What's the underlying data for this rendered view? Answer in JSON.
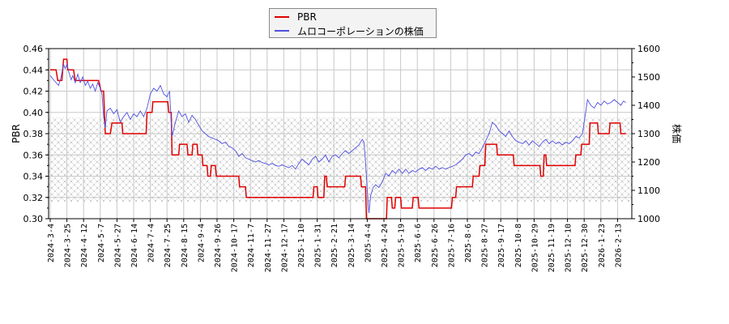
{
  "legend": {
    "items": [
      {
        "label": "PBR",
        "color": "#e00000"
      },
      {
        "label": "ムロコーポレーションの株価",
        "color": "#5050e0"
      }
    ]
  },
  "axes": {
    "left_title": "PBR",
    "right_title": "株価"
  },
  "chart_data": {
    "type": "line",
    "title": "",
    "xlabel": "",
    "ylabel": "PBR",
    "y2label": "株価",
    "ylim": [
      0.3,
      0.46
    ],
    "y2lim": [
      1000,
      1600
    ],
    "yticks": [
      "0.30",
      "0.32",
      "0.34",
      "0.36",
      "0.38",
      "0.40",
      "0.42",
      "0.44",
      "0.46"
    ],
    "y2ticks": [
      "1000",
      "1100",
      "1200",
      "1300",
      "1400",
      "1500",
      "1600"
    ],
    "grid": true,
    "legend_position": "top-center",
    "shaded_band_pbr": [
      0.316,
      0.395
    ],
    "categories": [
      "2024-3-4",
      "2024-3-25",
      "2024-4-12",
      "2024-5-7",
      "2024-5-27",
      "2024-6-14",
      "2024-7-4",
      "2024-7-25",
      "2024-8-15",
      "2024-9-4",
      "2024-9-26",
      "2024-10-17",
      "2024-11-7",
      "2024-11-27",
      "2024-12-17",
      "2025-1-10",
      "2025-1-31",
      "2025-2-21",
      "2025-3-14",
      "2025-4-4",
      "2025-4-24",
      "2025-5-19",
      "2025-6-6",
      "2025-6-26",
      "2025-7-16",
      "2025-8-6",
      "2025-8-27",
      "2025-9-17",
      "2025-10-8",
      "2025-10-29",
      "2025-11-19",
      "2025-12-10",
      "2025-12-30",
      "2026-1-23",
      "2026-2-13"
    ],
    "series": [
      {
        "name": "PBR",
        "axis": "left",
        "color": "#e00000",
        "step": true,
        "points": [
          [
            0,
            0.44
          ],
          [
            0.35,
            0.44
          ],
          [
            0.45,
            0.43
          ],
          [
            0.7,
            0.43
          ],
          [
            0.8,
            0.45
          ],
          [
            1.0,
            0.45
          ],
          [
            1.05,
            0.44
          ],
          [
            1.4,
            0.44
          ],
          [
            1.5,
            0.43
          ],
          [
            2.9,
            0.43
          ],
          [
            3.05,
            0.42
          ],
          [
            3.2,
            0.42
          ],
          [
            3.3,
            0.38
          ],
          [
            3.6,
            0.38
          ],
          [
            3.7,
            0.39
          ],
          [
            4.3,
            0.39
          ],
          [
            4.35,
            0.38
          ],
          [
            5.75,
            0.38
          ],
          [
            5.8,
            0.4
          ],
          [
            6.1,
            0.4
          ],
          [
            6.15,
            0.41
          ],
          [
            7.05,
            0.41
          ],
          [
            7.1,
            0.4
          ],
          [
            7.25,
            0.4
          ],
          [
            7.3,
            0.36
          ],
          [
            7.7,
            0.36
          ],
          [
            7.75,
            0.37
          ],
          [
            8.2,
            0.37
          ],
          [
            8.25,
            0.36
          ],
          [
            8.5,
            0.36
          ],
          [
            8.55,
            0.37
          ],
          [
            8.8,
            0.37
          ],
          [
            8.85,
            0.36
          ],
          [
            9.1,
            0.36
          ],
          [
            9.15,
            0.35
          ],
          [
            9.4,
            0.35
          ],
          [
            9.45,
            0.34
          ],
          [
            9.6,
            0.34
          ],
          [
            9.65,
            0.35
          ],
          [
            9.9,
            0.35
          ],
          [
            9.95,
            0.34
          ],
          [
            11.3,
            0.34
          ],
          [
            11.35,
            0.33
          ],
          [
            11.7,
            0.33
          ],
          [
            11.75,
            0.32
          ],
          [
            15.75,
            0.32
          ],
          [
            15.8,
            0.33
          ],
          [
            16.0,
            0.33
          ],
          [
            16.05,
            0.32
          ],
          [
            16.4,
            0.32
          ],
          [
            16.45,
            0.34
          ],
          [
            16.55,
            0.34
          ],
          [
            16.6,
            0.33
          ],
          [
            17.65,
            0.33
          ],
          [
            17.7,
            0.34
          ],
          [
            18.6,
            0.34
          ],
          [
            18.65,
            0.33
          ],
          [
            18.9,
            0.33
          ],
          [
            18.95,
            0.3
          ],
          [
            20.15,
            0.3
          ],
          [
            20.2,
            0.32
          ],
          [
            20.45,
            0.32
          ],
          [
            20.5,
            0.31
          ],
          [
            20.65,
            0.31
          ],
          [
            20.7,
            0.32
          ],
          [
            21.0,
            0.32
          ],
          [
            21.05,
            0.31
          ],
          [
            21.7,
            0.31
          ],
          [
            21.75,
            0.32
          ],
          [
            22.05,
            0.32
          ],
          [
            22.1,
            0.31
          ],
          [
            24.05,
            0.31
          ],
          [
            24.1,
            0.32
          ],
          [
            24.3,
            0.32
          ],
          [
            24.35,
            0.33
          ],
          [
            25.3,
            0.33
          ],
          [
            25.35,
            0.34
          ],
          [
            25.7,
            0.34
          ],
          [
            25.75,
            0.35
          ],
          [
            26.05,
            0.35
          ],
          [
            26.1,
            0.37
          ],
          [
            26.75,
            0.37
          ],
          [
            26.8,
            0.36
          ],
          [
            27.75,
            0.36
          ],
          [
            27.8,
            0.35
          ],
          [
            29.35,
            0.35
          ],
          [
            29.4,
            0.34
          ],
          [
            29.55,
            0.34
          ],
          [
            29.6,
            0.36
          ],
          [
            29.7,
            0.36
          ],
          [
            29.75,
            0.35
          ],
          [
            31.45,
            0.35
          ],
          [
            31.5,
            0.36
          ],
          [
            31.8,
            0.36
          ],
          [
            31.85,
            0.37
          ],
          [
            32.3,
            0.37
          ],
          [
            32.35,
            0.39
          ],
          [
            32.8,
            0.39
          ],
          [
            32.85,
            0.38
          ],
          [
            33.5,
            0.38
          ],
          [
            33.55,
            0.39
          ],
          [
            34.15,
            0.39
          ],
          [
            34.2,
            0.38
          ],
          [
            34.5,
            0.38
          ]
        ]
      },
      {
        "name": "ムロコーポレーションの株価",
        "axis": "right",
        "color": "#5050e0",
        "step": false,
        "points": [
          [
            0,
            1505
          ],
          [
            0.2,
            1490
          ],
          [
            0.35,
            1480
          ],
          [
            0.5,
            1470
          ],
          [
            0.65,
            1500
          ],
          [
            0.8,
            1545
          ],
          [
            0.9,
            1530
          ],
          [
            1.0,
            1545
          ],
          [
            1.1,
            1520
          ],
          [
            1.25,
            1490
          ],
          [
            1.35,
            1505
          ],
          [
            1.5,
            1480
          ],
          [
            1.65,
            1510
          ],
          [
            1.8,
            1480
          ],
          [
            1.95,
            1500
          ],
          [
            2.1,
            1470
          ],
          [
            2.25,
            1485
          ],
          [
            2.4,
            1460
          ],
          [
            2.55,
            1475
          ],
          [
            2.7,
            1450
          ],
          [
            2.85,
            1480
          ],
          [
            3.0,
            1460
          ],
          [
            3.1,
            1440
          ],
          [
            3.2,
            1360
          ],
          [
            3.3,
            1320
          ],
          [
            3.4,
            1380
          ],
          [
            3.6,
            1390
          ],
          [
            3.8,
            1370
          ],
          [
            4.0,
            1385
          ],
          [
            4.2,
            1340
          ],
          [
            4.4,
            1360
          ],
          [
            4.6,
            1375
          ],
          [
            4.8,
            1350
          ],
          [
            5.0,
            1370
          ],
          [
            5.2,
            1360
          ],
          [
            5.4,
            1380
          ],
          [
            5.6,
            1360
          ],
          [
            5.8,
            1390
          ],
          [
            6.0,
            1440
          ],
          [
            6.2,
            1460
          ],
          [
            6.4,
            1450
          ],
          [
            6.6,
            1470
          ],
          [
            6.8,
            1440
          ],
          [
            7.0,
            1430
          ],
          [
            7.15,
            1450
          ],
          [
            7.3,
            1290
          ],
          [
            7.5,
            1340
          ],
          [
            7.7,
            1380
          ],
          [
            7.9,
            1360
          ],
          [
            8.1,
            1370
          ],
          [
            8.3,
            1340
          ],
          [
            8.5,
            1365
          ],
          [
            8.7,
            1350
          ],
          [
            8.9,
            1330
          ],
          [
            9.1,
            1310
          ],
          [
            9.3,
            1300
          ],
          [
            9.5,
            1290
          ],
          [
            9.7,
            1285
          ],
          [
            9.9,
            1280
          ],
          [
            10.1,
            1275
          ],
          [
            10.3,
            1265
          ],
          [
            10.5,
            1270
          ],
          [
            10.7,
            1255
          ],
          [
            10.9,
            1250
          ],
          [
            11.1,
            1240
          ],
          [
            11.3,
            1220
          ],
          [
            11.5,
            1230
          ],
          [
            11.7,
            1215
          ],
          [
            11.9,
            1210
          ],
          [
            12.1,
            1205
          ],
          [
            12.3,
            1200
          ],
          [
            12.5,
            1205
          ],
          [
            12.7,
            1198
          ],
          [
            12.9,
            1195
          ],
          [
            13.1,
            1190
          ],
          [
            13.3,
            1195
          ],
          [
            13.5,
            1188
          ],
          [
            13.7,
            1185
          ],
          [
            13.9,
            1190
          ],
          [
            14.1,
            1185
          ],
          [
            14.3,
            1180
          ],
          [
            14.5,
            1188
          ],
          [
            14.7,
            1175
          ],
          [
            14.9,
            1195
          ],
          [
            15.1,
            1210
          ],
          [
            15.3,
            1200
          ],
          [
            15.5,
            1190
          ],
          [
            15.7,
            1210
          ],
          [
            15.9,
            1220
          ],
          [
            16.1,
            1200
          ],
          [
            16.3,
            1210
          ],
          [
            16.5,
            1225
          ],
          [
            16.7,
            1200
          ],
          [
            16.9,
            1220
          ],
          [
            17.1,
            1225
          ],
          [
            17.3,
            1215
          ],
          [
            17.5,
            1230
          ],
          [
            17.7,
            1240
          ],
          [
            17.9,
            1230
          ],
          [
            18.1,
            1240
          ],
          [
            18.3,
            1250
          ],
          [
            18.5,
            1260
          ],
          [
            18.7,
            1280
          ],
          [
            18.8,
            1270
          ],
          [
            18.9,
            1200
          ],
          [
            19.0,
            1100
          ],
          [
            19.1,
            1020
          ],
          [
            19.2,
            1080
          ],
          [
            19.35,
            1110
          ],
          [
            19.5,
            1120
          ],
          [
            19.7,
            1110
          ],
          [
            19.9,
            1130
          ],
          [
            20.1,
            1160
          ],
          [
            20.3,
            1150
          ],
          [
            20.5,
            1170
          ],
          [
            20.7,
            1160
          ],
          [
            20.9,
            1175
          ],
          [
            21.1,
            1160
          ],
          [
            21.3,
            1175
          ],
          [
            21.5,
            1160
          ],
          [
            21.7,
            1170
          ],
          [
            21.9,
            1165
          ],
          [
            22.1,
            1175
          ],
          [
            22.3,
            1180
          ],
          [
            22.5,
            1170
          ],
          [
            22.7,
            1180
          ],
          [
            22.9,
            1175
          ],
          [
            23.1,
            1185
          ],
          [
            23.3,
            1175
          ],
          [
            23.5,
            1180
          ],
          [
            23.7,
            1175
          ],
          [
            23.9,
            1180
          ],
          [
            24.1,
            1185
          ],
          [
            24.3,
            1190
          ],
          [
            24.5,
            1200
          ],
          [
            24.7,
            1210
          ],
          [
            24.9,
            1225
          ],
          [
            25.1,
            1230
          ],
          [
            25.3,
            1220
          ],
          [
            25.5,
            1235
          ],
          [
            25.7,
            1230
          ],
          [
            25.9,
            1250
          ],
          [
            26.1,
            1275
          ],
          [
            26.3,
            1300
          ],
          [
            26.5,
            1340
          ],
          [
            26.7,
            1330
          ],
          [
            26.9,
            1310
          ],
          [
            27.1,
            1300
          ],
          [
            27.3,
            1290
          ],
          [
            27.5,
            1310
          ],
          [
            27.7,
            1290
          ],
          [
            27.9,
            1275
          ],
          [
            28.1,
            1270
          ],
          [
            28.3,
            1265
          ],
          [
            28.5,
            1275
          ],
          [
            28.7,
            1260
          ],
          [
            28.9,
            1275
          ],
          [
            29.1,
            1265
          ],
          [
            29.3,
            1255
          ],
          [
            29.5,
            1270
          ],
          [
            29.7,
            1280
          ],
          [
            29.9,
            1265
          ],
          [
            30.1,
            1275
          ],
          [
            30.3,
            1265
          ],
          [
            30.5,
            1270
          ],
          [
            30.7,
            1260
          ],
          [
            30.9,
            1270
          ],
          [
            31.1,
            1265
          ],
          [
            31.3,
            1275
          ],
          [
            31.5,
            1290
          ],
          [
            31.7,
            1285
          ],
          [
            31.9,
            1300
          ],
          [
            32.1,
            1380
          ],
          [
            32.2,
            1420
          ],
          [
            32.4,
            1400
          ],
          [
            32.6,
            1390
          ],
          [
            32.8,
            1410
          ],
          [
            33.0,
            1400
          ],
          [
            33.2,
            1415
          ],
          [
            33.4,
            1405
          ],
          [
            33.6,
            1410
          ],
          [
            33.8,
            1420
          ],
          [
            34.0,
            1410
          ],
          [
            34.2,
            1400
          ],
          [
            34.35,
            1415
          ],
          [
            34.5,
            1410
          ]
        ]
      }
    ]
  }
}
